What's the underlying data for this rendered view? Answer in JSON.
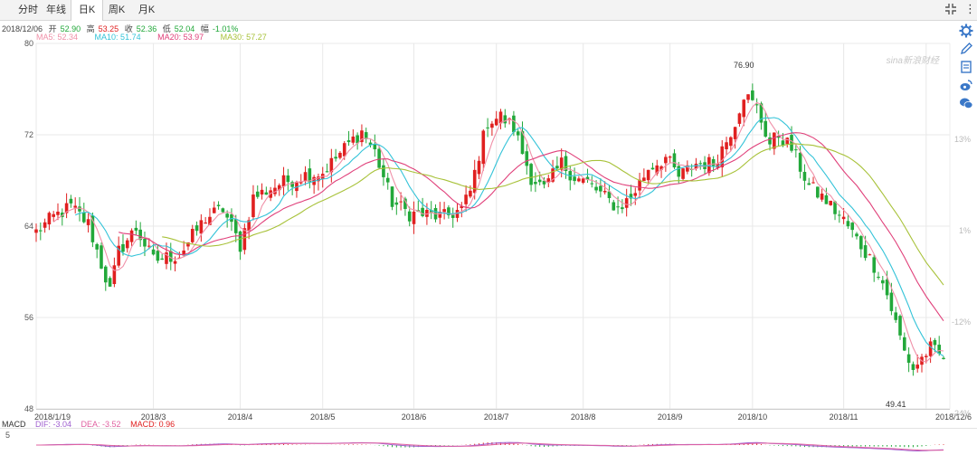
{
  "tabs": [
    {
      "label": "分时"
    },
    {
      "label": "年线"
    },
    {
      "label": "日K"
    },
    {
      "label": "周K"
    },
    {
      "label": "月K"
    }
  ],
  "active_tab": "日K",
  "icons": {
    "fullscreen": "fullscreen-icon",
    "more": "more-vertical-icon",
    "tools": [
      "gear-icon",
      "pencil-icon",
      "note-icon",
      "weibo-icon",
      "wechat-icon"
    ]
  },
  "info": {
    "date": "2018/12/06",
    "open_label": "开",
    "open": "52.90",
    "high_label": "高",
    "high": "53.25",
    "close_label": "收",
    "close": "52.36",
    "low_label": "低",
    "low": "52.04",
    "change_label": "幅",
    "change": "-1.01%"
  },
  "ma_legend": [
    {
      "label": "MA5: 52.34",
      "color": "#f090a8"
    },
    {
      "label": "MA10: 51.74",
      "color": "#33c3d8"
    },
    {
      "label": "MA20: 53.97",
      "color": "#e0407a"
    },
    {
      "label": "MA30: 57.27",
      "color": "#a8c23a"
    }
  ],
  "macd_legend": {
    "name": "MACD",
    "dif": "DIF: -3.04",
    "dif_color": "#a060d0",
    "dea": "DEA: -3.52",
    "dea_color": "#e060a0",
    "macd": "MACD: 0.96",
    "macd_color": "#e02020"
  },
  "watermark": "sina新浪财经",
  "colors": {
    "up": "#e02020",
    "down": "#22a83a",
    "grid": "#e8e8e8"
  },
  "chart_data": {
    "type": "candlestick",
    "y_ticks": [
      48,
      56,
      64,
      72,
      80
    ],
    "ylim": [
      48,
      80
    ],
    "right_axis_ticks": [
      "13%",
      "1%",
      "-12%",
      "-24%"
    ],
    "x_labels": [
      "2018/1/19",
      "2018/3",
      "2018/4",
      "2018/5",
      "2018/6",
      "2018/7",
      "2018/8",
      "2018/9",
      "2018/10",
      "2018/11",
      "2018/12/6"
    ],
    "x_label_index": [
      0,
      27,
      47,
      66,
      87,
      106,
      126,
      146,
      165,
      186,
      205
    ],
    "annotations": [
      {
        "text": "76.90",
        "index": 163,
        "value": 76.9
      },
      {
        "text": "49.41",
        "index": 198,
        "value": 49.41
      }
    ],
    "macd_axis_label": "5",
    "anchors": [
      [
        0,
        63.5
      ],
      [
        4,
        64.8
      ],
      [
        8,
        65.7
      ],
      [
        12,
        64.2
      ],
      [
        17,
        58.3
      ],
      [
        19,
        61.8
      ],
      [
        23,
        63.8
      ],
      [
        27,
        61.0
      ],
      [
        33,
        61.5
      ],
      [
        39,
        64.7
      ],
      [
        43,
        65.5
      ],
      [
        47,
        62.3
      ],
      [
        50,
        66.5
      ],
      [
        56,
        67.7
      ],
      [
        62,
        68.5
      ],
      [
        66,
        68.7
      ],
      [
        72,
        71.2
      ],
      [
        75,
        72.3
      ],
      [
        78,
        70.5
      ],
      [
        82,
        66.1
      ],
      [
        86,
        65.1
      ],
      [
        90,
        65.0
      ],
      [
        94,
        64.8
      ],
      [
        98,
        65.5
      ],
      [
        100,
        67.0
      ],
      [
        102,
        70.3
      ],
      [
        104,
        73.2
      ],
      [
        107,
        73.6
      ],
      [
        110,
        72.6
      ],
      [
        114,
        68.3
      ],
      [
        117,
        67.2
      ],
      [
        121,
        69.5
      ],
      [
        124,
        68.3
      ],
      [
        127,
        67.8
      ],
      [
        131,
        66.5
      ],
      [
        134,
        65.6
      ],
      [
        137,
        66.5
      ],
      [
        141,
        69.1
      ],
      [
        145,
        70.0
      ],
      [
        148,
        68.3
      ],
      [
        152,
        69.5
      ],
      [
        156,
        69.5
      ],
      [
        159,
        71.5
      ],
      [
        161,
        73.2
      ],
      [
        163,
        75.6
      ],
      [
        166,
        74.3
      ],
      [
        169,
        71.2
      ],
      [
        171,
        72.0
      ],
      [
        174,
        70.8
      ],
      [
        178,
        67.5
      ],
      [
        182,
        66.2
      ],
      [
        186,
        64.5
      ],
      [
        190,
        62.3
      ],
      [
        194,
        60.0
      ],
      [
        196,
        58.0
      ],
      [
        198,
        55.5
      ],
      [
        200,
        53.0
      ],
      [
        202,
        51.5
      ],
      [
        205,
        52.9
      ],
      [
        206,
        53.3
      ],
      [
        209,
        52.36
      ]
    ]
  }
}
